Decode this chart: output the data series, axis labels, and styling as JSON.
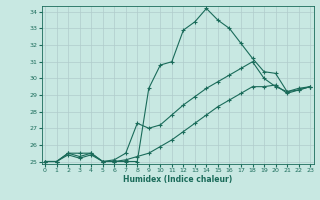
{
  "xlabel": "Humidex (Indice chaleur)",
  "xlim": [
    0,
    23
  ],
  "ylim": [
    25,
    34
  ],
  "yticks": [
    25,
    26,
    27,
    28,
    29,
    30,
    31,
    32,
    33,
    34
  ],
  "xticks": [
    0,
    1,
    2,
    3,
    4,
    5,
    6,
    7,
    8,
    9,
    10,
    11,
    12,
    13,
    14,
    15,
    16,
    17,
    18,
    19,
    20,
    21,
    22,
    23
  ],
  "background_color": "#c8e8e2",
  "grid_color": "#b0cccc",
  "line_color": "#1a6b5a",
  "lines": [
    {
      "x": [
        0,
        1,
        2,
        3,
        4,
        5,
        6,
        7,
        8,
        9,
        10,
        11,
        12,
        13,
        14,
        15,
        16,
        17,
        18,
        19,
        20,
        21,
        22,
        23
      ],
      "y": [
        25,
        25,
        25.5,
        25.5,
        25.5,
        25,
        25,
        25,
        25,
        29.4,
        30.8,
        31.0,
        32.9,
        33.4,
        34.2,
        33.5,
        33.0,
        32.1,
        31.2,
        30.4,
        30.3,
        29.2,
        29.3,
        29.5
      ]
    },
    {
      "x": [
        0,
        1,
        2,
        3,
        4,
        5,
        6,
        7,
        8,
        9,
        10,
        11,
        12,
        13,
        14,
        15,
        16,
        17,
        18,
        19,
        20,
        21,
        22,
        23
      ],
      "y": [
        25,
        25,
        25.5,
        25.3,
        25.5,
        25,
        25.1,
        25.5,
        27.3,
        27.0,
        27.2,
        27.8,
        28.4,
        28.9,
        29.4,
        29.8,
        30.2,
        30.6,
        31.0,
        30.0,
        29.5,
        29.2,
        29.4,
        29.5
      ]
    },
    {
      "x": [
        0,
        1,
        2,
        3,
        4,
        5,
        6,
        7,
        8,
        9,
        10,
        11,
        12,
        13,
        14,
        15,
        16,
        17,
        18,
        19,
        20,
        21,
        22,
        23
      ],
      "y": [
        25,
        25,
        25.4,
        25.2,
        25.4,
        25,
        25.0,
        25.1,
        25.3,
        25.5,
        25.9,
        26.3,
        26.8,
        27.3,
        27.8,
        28.3,
        28.7,
        29.1,
        29.5,
        29.5,
        29.6,
        29.1,
        29.3,
        29.5
      ]
    }
  ]
}
